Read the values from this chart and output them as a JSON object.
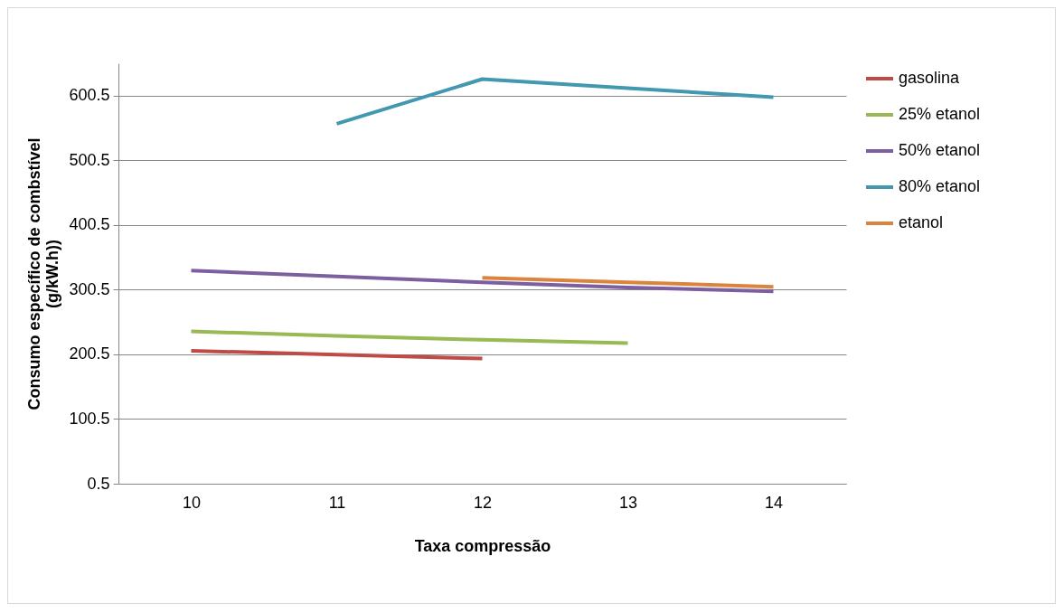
{
  "chart_data": {
    "type": "line",
    "xlabel": "Taxa compressão",
    "ylabel": "Consumo específico de combstível (g/kW.h))",
    "categories": [
      "10",
      "11",
      "12",
      "13",
      "14"
    ],
    "series": [
      {
        "name": "gasolina",
        "color": "#be4b48",
        "values": [
          206,
          200,
          194,
          null,
          null
        ]
      },
      {
        "name": "25% etanol",
        "color": "#98b954",
        "values": [
          236,
          229,
          223,
          218,
          null
        ]
      },
      {
        "name": "50% etanol",
        "color": "#7d5fa0",
        "values": [
          330,
          321,
          312,
          304,
          298
        ]
      },
      {
        "name": "80% etanol",
        "color": "#4198af",
        "values": [
          null,
          557,
          626,
          612,
          598
        ]
      },
      {
        "name": "etanol",
        "color": "#db843d",
        "values": [
          null,
          null,
          319,
          312,
          305
        ]
      }
    ],
    "ylim": [
      0.5,
      650.5
    ],
    "yticks": [
      0.5,
      100.5,
      200.5,
      300.5,
      400.5,
      500.5,
      600.5
    ],
    "grid": "y",
    "legend": "right",
    "marker": "none",
    "line_style": "solid"
  }
}
